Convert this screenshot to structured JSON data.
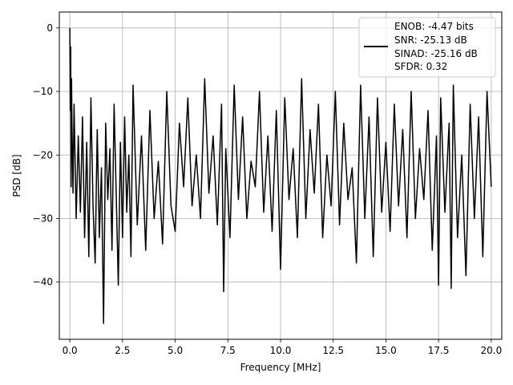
{
  "chart_data": {
    "type": "line",
    "title": "",
    "xlabel": "Frequency [MHz]",
    "ylabel": "PSD [dB]",
    "xlim": [
      -0.5,
      20.5
    ],
    "ylim": [
      -49,
      2.5
    ],
    "xticks": [
      0.0,
      2.5,
      5.0,
      7.5,
      10.0,
      12.5,
      15.0,
      17.5,
      20.0
    ],
    "xtick_labels": [
      "0.0",
      "2.5",
      "5.0",
      "7.5",
      "10.0",
      "12.5",
      "15.0",
      "17.5",
      "20.0"
    ],
    "yticks": [
      0,
      -10,
      -20,
      -30,
      -40
    ],
    "ytick_labels": [
      "0",
      "−10",
      "−20",
      "−30",
      "−40"
    ],
    "grid": true,
    "legend_position": "top-right",
    "series": [
      {
        "name": "ENOB: -4.47 bits\nSNR: -25.13 dB\nSINAD: -25.16 dB\nSFDR: 0.32",
        "legend_lines": [
          "ENOB: -4.47 bits",
          "SNR: -25.13 dB",
          "SINAD: -25.16 dB",
          "SFDR: 0.32"
        ],
        "color": "#000000",
        "x": [
          0.0,
          0.02,
          0.04,
          0.06,
          0.08,
          0.1,
          0.15,
          0.2,
          0.3,
          0.4,
          0.5,
          0.6,
          0.7,
          0.8,
          0.9,
          1.0,
          1.1,
          1.2,
          1.3,
          1.4,
          1.5,
          1.6,
          1.7,
          1.8,
          1.9,
          2.0,
          2.1,
          2.2,
          2.3,
          2.4,
          2.5,
          2.6,
          2.7,
          2.8,
          2.9,
          3.0,
          3.2,
          3.4,
          3.6,
          3.8,
          4.0,
          4.2,
          4.4,
          4.6,
          4.8,
          5.0,
          5.2,
          5.4,
          5.6,
          5.8,
          6.0,
          6.2,
          6.4,
          6.6,
          6.8,
          7.0,
          7.2,
          7.3,
          7.4,
          7.6,
          7.8,
          8.0,
          8.2,
          8.4,
          8.6,
          8.8,
          9.0,
          9.2,
          9.4,
          9.6,
          9.8,
          10.0,
          10.2,
          10.4,
          10.6,
          10.8,
          11.0,
          11.2,
          11.4,
          11.6,
          11.8,
          12.0,
          12.2,
          12.4,
          12.6,
          12.8,
          13.0,
          13.2,
          13.4,
          13.6,
          13.8,
          14.0,
          14.2,
          14.4,
          14.6,
          14.8,
          15.0,
          15.2,
          15.4,
          15.6,
          15.8,
          16.0,
          16.2,
          16.4,
          16.6,
          16.8,
          17.0,
          17.2,
          17.4,
          17.5,
          17.6,
          17.8,
          18.0,
          18.1,
          18.2,
          18.4,
          18.6,
          18.8,
          19.0,
          19.2,
          19.4,
          19.6,
          19.8,
          20.0
        ],
        "y": [
          0.0,
          -13,
          -3,
          -25,
          -8,
          -15,
          -26,
          -12,
          -30,
          -17,
          -29,
          -14,
          -33,
          -18,
          -36,
          -11,
          -28,
          -37,
          -16,
          -33,
          -22,
          -46.5,
          -15,
          -27,
          -19,
          -35,
          -12,
          -26,
          -40.5,
          -18,
          -33,
          -14,
          -29,
          -20,
          -36,
          -9,
          -31,
          -17,
          -35,
          -13,
          -30,
          -21,
          -34,
          -10,
          -28,
          -32,
          -15,
          -25,
          -11,
          -28,
          -20,
          -30,
          -8,
          -26,
          -17,
          -31,
          -12,
          -41.5,
          -19,
          -33,
          -9,
          -27,
          -14,
          -30,
          -21,
          -25,
          -10,
          -29,
          -17,
          -32,
          -13,
          -38,
          -11,
          -27,
          -19,
          -33,
          -8,
          -30,
          -16,
          -26,
          -12,
          -33,
          -20,
          -28,
          -10,
          -31,
          -15,
          -27,
          -22,
          -37,
          -9,
          -30,
          -14,
          -36,
          -11,
          -29,
          -18,
          -32,
          -12,
          -28,
          -16,
          -33,
          -10,
          -30,
          -19,
          -27,
          -13,
          -35,
          -17,
          -40.5,
          -11,
          -29,
          -15,
          -41,
          -9,
          -33,
          -20,
          -39,
          -12,
          -30,
          -14,
          -36,
          -10,
          -25
        ]
      }
    ]
  }
}
